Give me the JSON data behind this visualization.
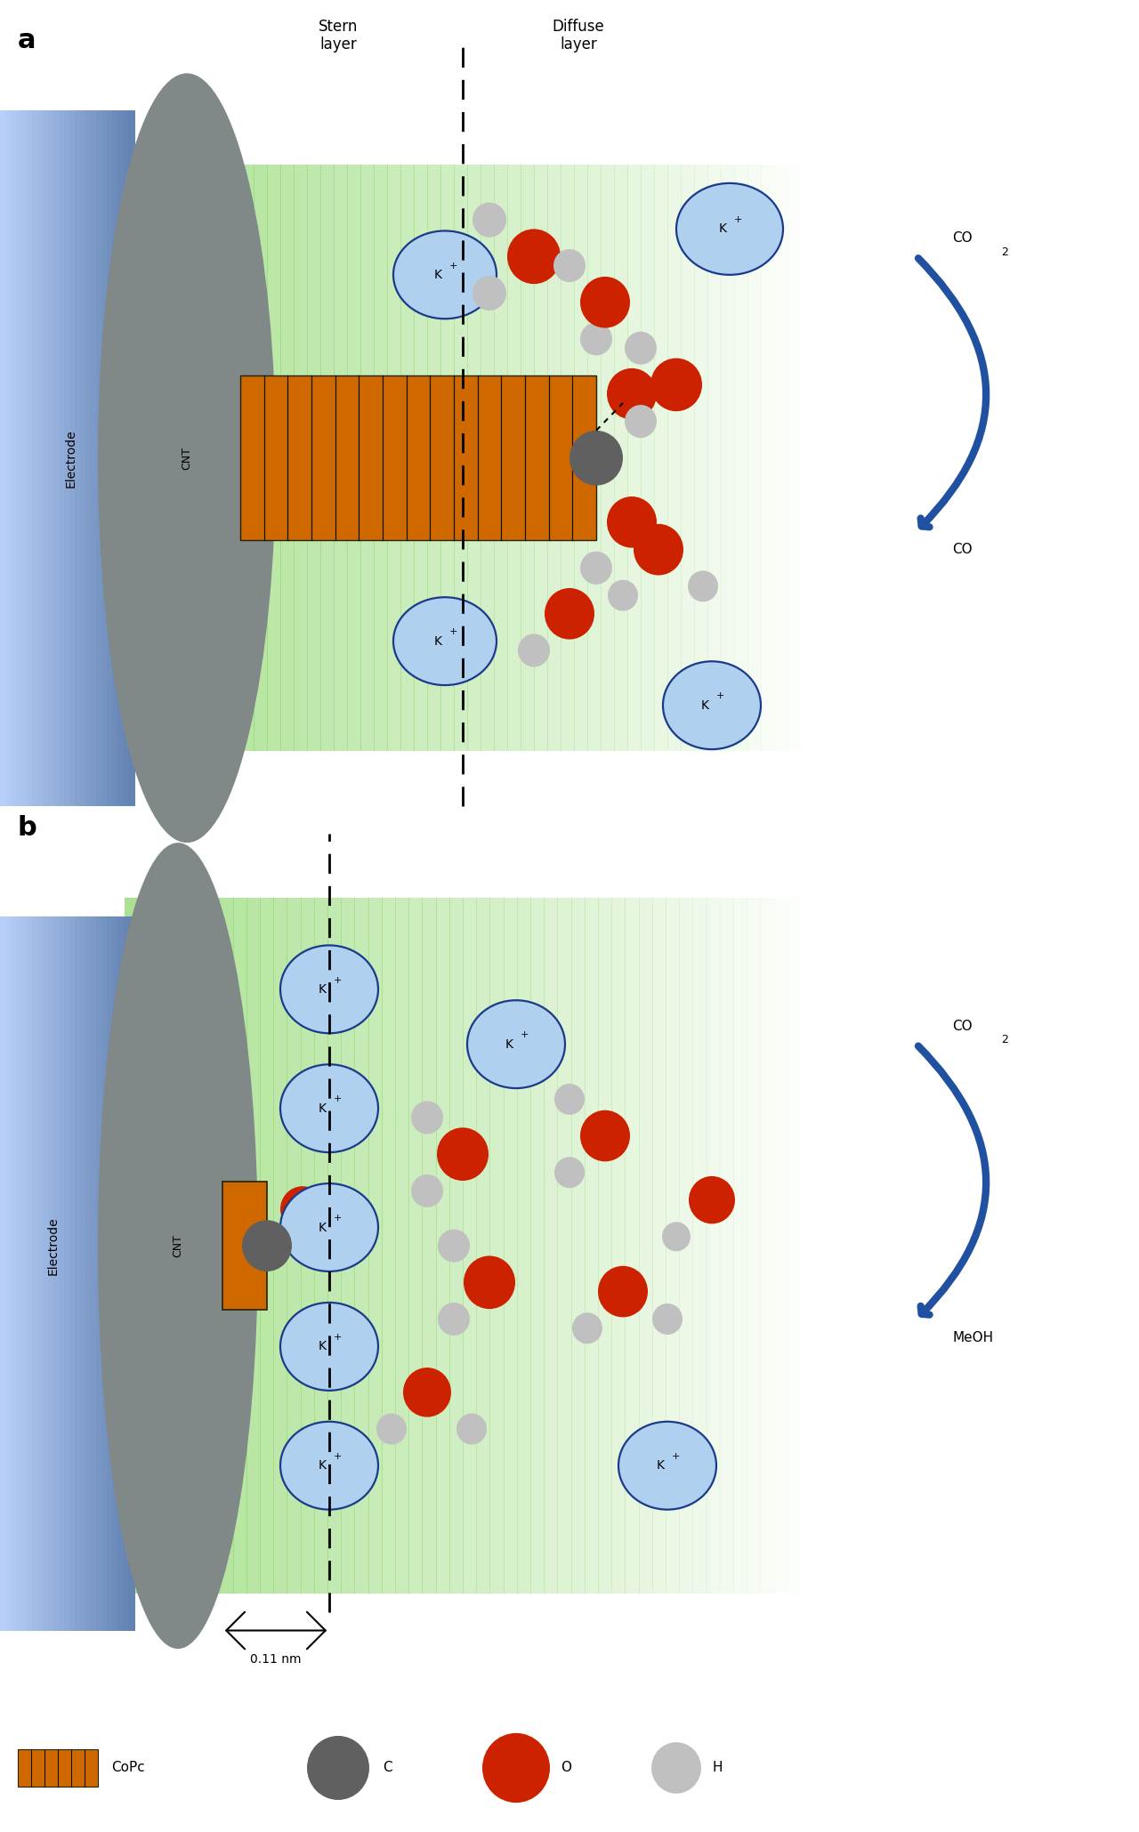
{
  "bg_color": "#ffffff",
  "electrode_blue_left": "#b8d0f0",
  "electrode_blue_right": "#7090c8",
  "gray_blob_color": "#808888",
  "green_color": "#90d870",
  "cnt_orange": "#d06800",
  "cnt_line_color": "#1a0a00",
  "k_fill": "#b0d0f0",
  "k_edge": "#1a3a8a",
  "carbon_gray": "#606060",
  "oxygen_red": "#cc2200",
  "hydrogen_gray": "#c0c0c0",
  "arrow_blue": "#2050a0",
  "label_a": "a",
  "label_b": "b",
  "stern_label": "Stern\nlayer",
  "diffuse_label": "Diffuse\nlayer",
  "electrode_label": "Electrode",
  "cnt_label": "CNT",
  "co2_label": "CO",
  "co2_sub": "2",
  "co_label": "CO",
  "meoh_label": "MeOH",
  "k_label": "K",
  "k_sup": "+",
  "legend_copc": "CoPc",
  "legend_c": "C",
  "legend_o": "O",
  "legend_h": "H",
  "dim_annotation": "0.11 nm"
}
